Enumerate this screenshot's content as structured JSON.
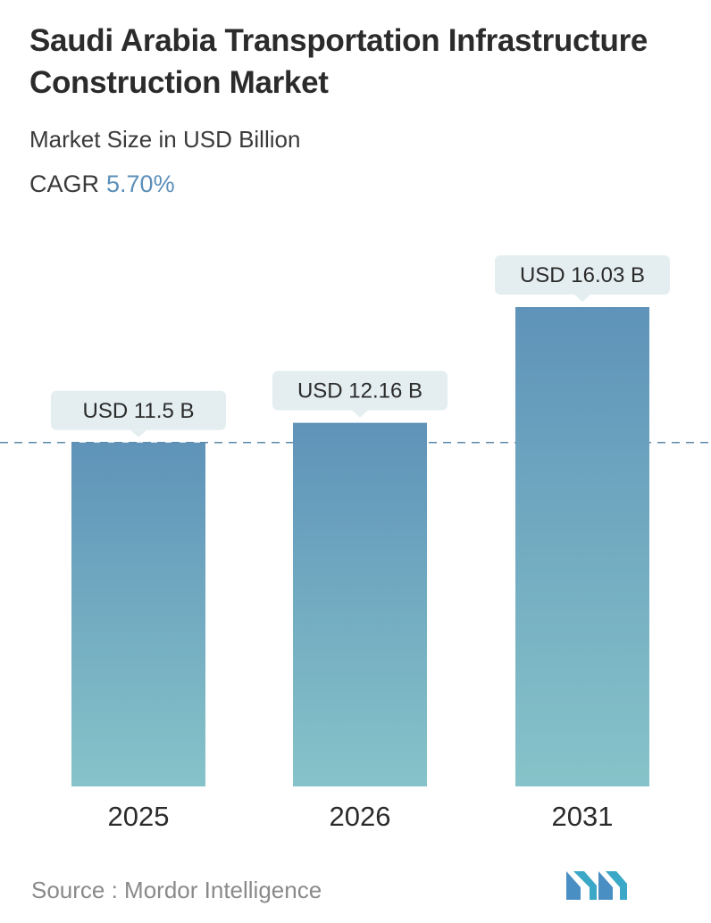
{
  "title": "Saudi Arabia Transportation Infrastructure Construction Market",
  "subtitle": "Market Size in USD Billion",
  "cagr_label": "CAGR",
  "cagr_value": "5.70%",
  "source": "Source :  Mordor Intelligence",
  "colors": {
    "bar_top": "#5f93b9",
    "bar_bottom": "#86c3c9",
    "accent": "#5b8fb9",
    "label_bg": "#e4eef0"
  },
  "chart_data": {
    "type": "bar",
    "categories": [
      "2025",
      "2026",
      "2031"
    ],
    "values": [
      11.5,
      12.16,
      16.03
    ],
    "data_labels": [
      "USD 11.5 B",
      "USD 12.16 B",
      "USD 16.03 B"
    ],
    "reference_line": 11.5,
    "ylim": [
      0,
      16.03
    ],
    "grid": false,
    "legend": "none"
  }
}
